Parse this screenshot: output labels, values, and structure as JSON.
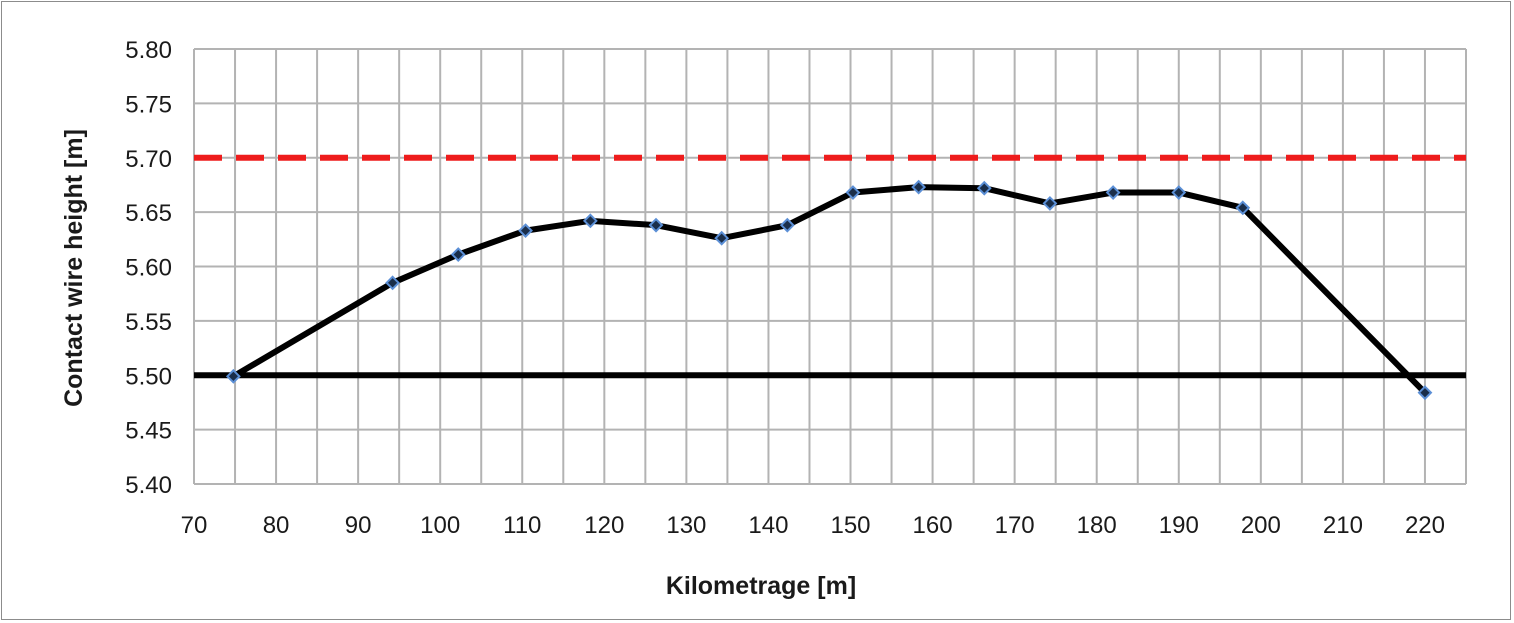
{
  "chart_data": {
    "type": "line",
    "xlabel": "Kilometrage [m]",
    "ylabel": "Contact wire height [m]",
    "xlim": [
      70,
      225
    ],
    "ylim": [
      5.4,
      5.8
    ],
    "x_ticks": [
      70,
      80,
      90,
      100,
      110,
      120,
      130,
      140,
      150,
      160,
      170,
      180,
      190,
      200,
      210,
      220
    ],
    "y_ticks": [
      5.4,
      5.45,
      5.5,
      5.55,
      5.6,
      5.65,
      5.7,
      5.75,
      5.8
    ],
    "x_minor_step": 5,
    "grid": true,
    "legend": "none",
    "series": [
      {
        "color": "#000000",
        "marker": "diamond",
        "marker_fill": "#1a2e4a",
        "marker_edge": "#5b8fd6",
        "x": [
          74.8,
          94.2,
          102.2,
          110.4,
          118.3,
          126.3,
          134.3,
          142.3,
          150.3,
          158.3,
          166.3,
          174.3,
          182.0,
          190.0,
          197.8,
          220.0
        ],
        "y": [
          5.499,
          5.585,
          5.611,
          5.633,
          5.642,
          5.638,
          5.626,
          5.638,
          5.668,
          5.673,
          5.672,
          5.658,
          5.668,
          5.668,
          5.654,
          5.484
        ]
      }
    ],
    "reference_lines": [
      {
        "y": 5.7,
        "color": "#ee1c1c",
        "style": "dashed"
      },
      {
        "y": 5.5,
        "color": "#000000",
        "style": "solid"
      }
    ]
  }
}
